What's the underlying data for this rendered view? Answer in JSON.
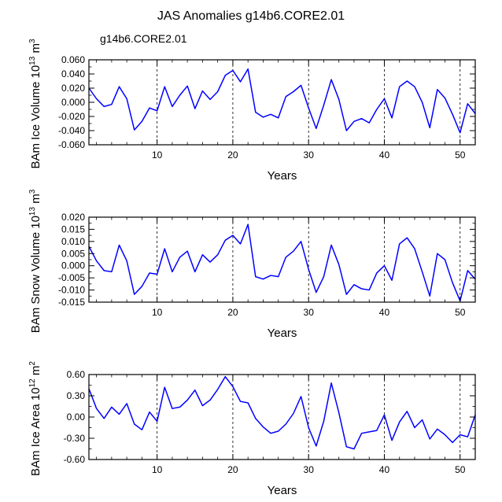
{
  "title": "JAS Anomalies g14b6.CORE2.01",
  "legend": {
    "label": "g14b6.CORE2.01",
    "color": "#0000ff"
  },
  "colors": {
    "series": "#0000ff",
    "axis": "#000000",
    "grid": "#000000"
  },
  "chart_data": [
    {
      "type": "line",
      "ylabel": "BAm Ice Volume",
      "ylabel_unit": "10",
      "ylabel_unit_exp": "13",
      "ylabel_unit_tail": " m",
      "ylabel_unit_tail_exp": "3",
      "xlabel": "Years",
      "xlim": [
        1,
        52
      ],
      "ylim": [
        -0.06,
        0.06
      ],
      "x_ticks": [
        10,
        20,
        30,
        40,
        50
      ],
      "x_tick_labels": [
        "10",
        "20",
        "30",
        "40",
        "50"
      ],
      "y_ticks": [
        -0.06,
        -0.04,
        -0.02,
        0.0,
        0.02,
        0.04,
        0.06
      ],
      "y_tick_labels": [
        "-0.060",
        "-0.040",
        "-0.020",
        "0.000",
        "0.020",
        "0.040",
        "0.060"
      ],
      "vlines": [
        10,
        20,
        30,
        40,
        50
      ],
      "series": [
        {
          "name": "g14b6.CORE2.01",
          "x": [
            1,
            2,
            3,
            4,
            5,
            6,
            7,
            8,
            9,
            10,
            11,
            12,
            13,
            14,
            15,
            16,
            17,
            18,
            19,
            20,
            21,
            22,
            23,
            24,
            25,
            26,
            27,
            28,
            29,
            30,
            31,
            32,
            33,
            34,
            35,
            36,
            37,
            38,
            39,
            40,
            41,
            42,
            43,
            44,
            45,
            46,
            47,
            48,
            49,
            50,
            51,
            52
          ],
          "values": [
            0.02,
            0.005,
            -0.006,
            -0.003,
            0.022,
            0.005,
            -0.039,
            -0.027,
            -0.008,
            -0.012,
            0.022,
            -0.006,
            0.01,
            0.023,
            -0.009,
            0.016,
            0.004,
            0.015,
            0.038,
            0.045,
            0.029,
            0.047,
            -0.014,
            -0.021,
            -0.017,
            -0.022,
            0.008,
            0.015,
            0.024,
            -0.008,
            -0.037,
            -0.004,
            0.032,
            0.004,
            -0.04,
            -0.027,
            -0.023,
            -0.029,
            -0.01,
            0.005,
            -0.022,
            0.022,
            0.03,
            0.022,
            0.0,
            -0.036,
            0.018,
            0.006,
            -0.017,
            -0.043,
            -0.002,
            -0.016
          ]
        }
      ]
    },
    {
      "type": "line",
      "ylabel": "BAm Snow Volume",
      "ylabel_unit": "10",
      "ylabel_unit_exp": "13",
      "ylabel_unit_tail": " m",
      "ylabel_unit_tail_exp": "3",
      "xlabel": "Years",
      "xlim": [
        1,
        52
      ],
      "ylim": [
        -0.015,
        0.02
      ],
      "x_ticks": [
        10,
        20,
        30,
        40,
        50
      ],
      "x_tick_labels": [
        "10",
        "20",
        "30",
        "40",
        "50"
      ],
      "y_ticks": [
        -0.015,
        -0.01,
        -0.005,
        0.0,
        0.005,
        0.01,
        0.015,
        0.02
      ],
      "y_tick_labels": [
        "-0.015",
        "-0.010",
        "-0.005",
        "0.000",
        "0.005",
        "0.010",
        "0.015",
        "0.020"
      ],
      "vlines": [
        10,
        20,
        30,
        40,
        50
      ],
      "series": [
        {
          "name": "g14b6.CORE2.01",
          "x": [
            1,
            2,
            3,
            4,
            5,
            6,
            7,
            8,
            9,
            10,
            11,
            12,
            13,
            14,
            15,
            16,
            17,
            18,
            19,
            20,
            21,
            22,
            23,
            24,
            25,
            26,
            27,
            28,
            29,
            30,
            31,
            32,
            33,
            34,
            35,
            36,
            37,
            38,
            39,
            40,
            41,
            42,
            43,
            44,
            45,
            46,
            47,
            48,
            49,
            50,
            51,
            52
          ],
          "values": [
            0.008,
            0.002,
            -0.002,
            -0.0025,
            0.0085,
            0.002,
            -0.0118,
            -0.0085,
            -0.003,
            -0.0035,
            0.007,
            -0.0025,
            0.0035,
            0.006,
            -0.0025,
            0.0045,
            0.0015,
            0.0045,
            0.0105,
            0.0125,
            0.009,
            0.017,
            -0.0045,
            -0.0055,
            -0.004,
            -0.0045,
            0.0035,
            0.006,
            0.01,
            -0.0015,
            -0.011,
            -0.0045,
            0.0085,
            0.0005,
            -0.0118,
            -0.0078,
            -0.0095,
            -0.01,
            -0.003,
            0.0,
            -0.006,
            0.009,
            0.0115,
            0.007,
            -0.0025,
            -0.0125,
            0.005,
            0.0025,
            -0.007,
            -0.0145,
            -0.002,
            -0.0055
          ]
        }
      ]
    },
    {
      "type": "line",
      "ylabel": "BAm Ice Area",
      "ylabel_unit": "10",
      "ylabel_unit_exp": "12",
      "ylabel_unit_tail": " m",
      "ylabel_unit_tail_exp": "2",
      "xlabel": "Years",
      "xlim": [
        1,
        52
      ],
      "ylim": [
        -0.6,
        0.6
      ],
      "x_ticks": [
        10,
        20,
        30,
        40,
        50
      ],
      "x_tick_labels": [
        "10",
        "20",
        "30",
        "40",
        "50"
      ],
      "y_ticks": [
        -0.6,
        -0.3,
        0.0,
        0.3,
        0.6
      ],
      "y_tick_labels": [
        "-0.60",
        "-0.30",
        "0.00",
        "0.30",
        "0.60"
      ],
      "vlines": [
        10,
        20,
        30,
        40,
        50
      ],
      "series": [
        {
          "name": "g14b6.CORE2.01",
          "x": [
            1,
            2,
            3,
            4,
            5,
            6,
            7,
            8,
            9,
            10,
            11,
            12,
            13,
            14,
            15,
            16,
            17,
            18,
            19,
            20,
            21,
            22,
            23,
            24,
            25,
            26,
            27,
            28,
            29,
            30,
            31,
            32,
            33,
            34,
            35,
            36,
            37,
            38,
            39,
            40,
            41,
            42,
            43,
            44,
            45,
            46,
            47,
            48,
            49,
            50,
            51,
            52
          ],
          "values": [
            0.4,
            0.12,
            -0.02,
            0.14,
            0.04,
            0.19,
            -0.1,
            -0.18,
            0.07,
            -0.06,
            0.42,
            0.12,
            0.14,
            0.24,
            0.38,
            0.16,
            0.24,
            0.39,
            0.57,
            0.43,
            0.22,
            0.2,
            -0.02,
            -0.14,
            -0.23,
            -0.2,
            -0.1,
            0.05,
            0.29,
            -0.15,
            -0.41,
            -0.06,
            0.48,
            0.06,
            -0.42,
            -0.45,
            -0.23,
            -0.21,
            -0.19,
            0.03,
            -0.33,
            -0.07,
            0.08,
            -0.15,
            -0.04,
            -0.31,
            -0.17,
            -0.25,
            -0.36,
            -0.25,
            -0.28,
            0.03
          ]
        }
      ]
    }
  ]
}
